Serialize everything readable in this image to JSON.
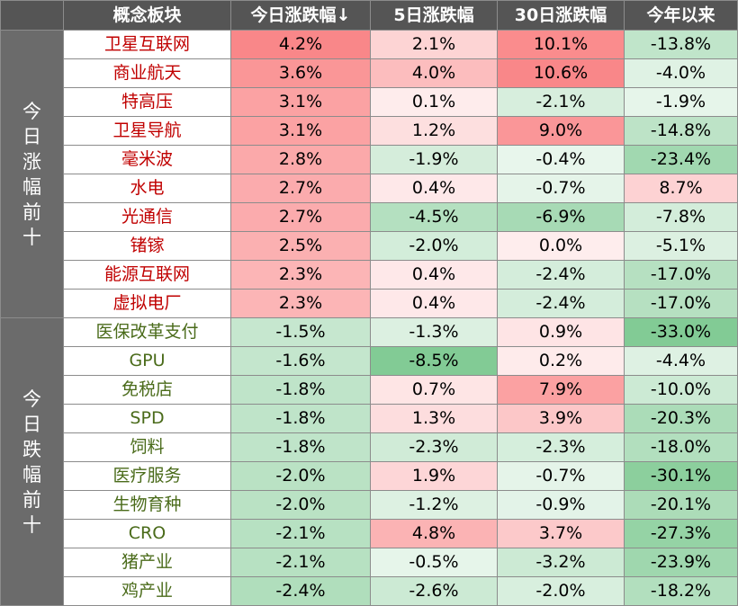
{
  "header": {
    "blank": "",
    "name": "概念板块",
    "today": "今日涨跌幅↓",
    "d5": "5日涨跌幅",
    "d30": "30日涨跌幅",
    "ytd": "今年以来"
  },
  "groups": [
    {
      "label": [
        "今",
        "日",
        "涨",
        "幅",
        "前",
        "十"
      ],
      "name_color": "#c00000",
      "rows": [
        {
          "name": "卫星互联网",
          "today": "4.2%",
          "d5": "2.1%",
          "d30": "10.1%",
          "ytd": "-13.8%"
        },
        {
          "name": "商业航天",
          "today": "3.6%",
          "d5": "4.0%",
          "d30": "10.6%",
          "ytd": "-4.0%"
        },
        {
          "name": "特高压",
          "today": "3.1%",
          "d5": "0.1%",
          "d30": "-2.1%",
          "ytd": "-1.9%"
        },
        {
          "name": "卫星导航",
          "today": "3.1%",
          "d5": "1.2%",
          "d30": "9.0%",
          "ytd": "-14.8%"
        },
        {
          "name": "毫米波",
          "today": "2.8%",
          "d5": "-1.9%",
          "d30": "-0.4%",
          "ytd": "-23.4%"
        },
        {
          "name": "水电",
          "today": "2.7%",
          "d5": "0.4%",
          "d30": "-0.7%",
          "ytd": "8.7%"
        },
        {
          "name": "光通信",
          "today": "2.7%",
          "d5": "-4.5%",
          "d30": "-6.9%",
          "ytd": "-7.8%"
        },
        {
          "name": "锗镓",
          "today": "2.5%",
          "d5": "-2.0%",
          "d30": "0.0%",
          "ytd": "-5.1%"
        },
        {
          "name": "能源互联网",
          "today": "2.3%",
          "d5": "0.4%",
          "d30": "-2.4%",
          "ytd": "-17.0%"
        },
        {
          "name": "虚拟电厂",
          "today": "2.3%",
          "d5": "0.4%",
          "d30": "-2.4%",
          "ytd": "-17.0%"
        }
      ]
    },
    {
      "label": [
        "今",
        "日",
        "跌",
        "幅",
        "前",
        "十"
      ],
      "name_color": "#4a6b1a",
      "rows": [
        {
          "name": "医保改革支付",
          "today": "-1.5%",
          "d5": "-1.3%",
          "d30": "0.9%",
          "ytd": "-33.0%"
        },
        {
          "name": "GPU",
          "today": "-1.6%",
          "d5": "-8.5%",
          "d30": "0.2%",
          "ytd": "-4.4%"
        },
        {
          "name": "免税店",
          "today": "-1.8%",
          "d5": "0.7%",
          "d30": "7.9%",
          "ytd": "-10.0%"
        },
        {
          "name": "SPD",
          "today": "-1.8%",
          "d5": "1.3%",
          "d30": "3.9%",
          "ytd": "-20.3%"
        },
        {
          "name": "饲料",
          "today": "-1.8%",
          "d5": "-2.3%",
          "d30": "-2.3%",
          "ytd": "-18.0%"
        },
        {
          "name": "医疗服务",
          "today": "-2.0%",
          "d5": "1.9%",
          "d30": "-0.7%",
          "ytd": "-30.1%"
        },
        {
          "name": "生物育种",
          "today": "-2.0%",
          "d5": "-1.2%",
          "d30": "-0.9%",
          "ytd": "-20.1%"
        },
        {
          "name": "CRO",
          "today": "-2.1%",
          "d5": "4.8%",
          "d30": "3.7%",
          "ytd": "-27.3%"
        },
        {
          "name": "猪产业",
          "today": "-2.1%",
          "d5": "-0.5%",
          "d30": "-3.2%",
          "ytd": "-23.9%"
        },
        {
          "name": "鸡产业",
          "today": "-2.4%",
          "d5": "-2.6%",
          "d30": "-2.0%",
          "ytd": "-18.2%"
        }
      ]
    }
  ],
  "colors": {
    "header_bg": "#555555",
    "group_bg": "#6b6b6b",
    "positive_tint": "#f8696b",
    "negative_tint": "#63be7b"
  }
}
